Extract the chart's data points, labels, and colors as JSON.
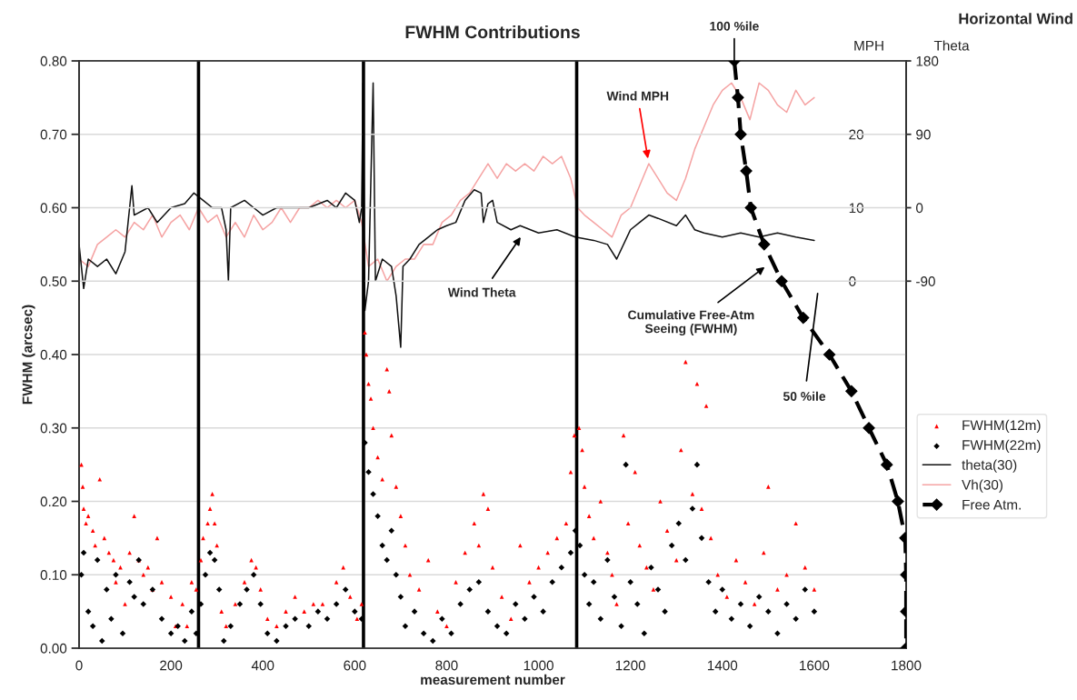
{
  "chart_data": {
    "type": "scatter",
    "title": "FWHM Contributions",
    "xlabel": "measurement number",
    "ylabel": "FWHM (arcsec)",
    "y2label": "Theta",
    "y3label": "MPH",
    "xlim": [
      0,
      1800
    ],
    "xticks": [
      0,
      200,
      400,
      600,
      800,
      1000,
      1200,
      1400,
      1600,
      1800
    ],
    "ylim": [
      0,
      0.8
    ],
    "yticks": [
      {
        "value": 0,
        "label": "0.00"
      },
      {
        "value": 0.1,
        "label": "0.10"
      },
      {
        "value": 0.2,
        "label": "0.20"
      },
      {
        "value": 0.3,
        "label": "0.30"
      },
      {
        "value": 0.4,
        "label": "0.40"
      },
      {
        "value": 0.5,
        "label": "0.50"
      },
      {
        "value": 0.6,
        "label": "0.60"
      },
      {
        "value": 0.7,
        "label": "0.70"
      },
      {
        "value": 0.8,
        "label": "0.80"
      }
    ],
    "y2lim": [
      -540,
      180
    ],
    "y2ticks": [
      -90,
      0,
      90,
      180
    ],
    "y3lim": [
      -50,
      30
    ],
    "y3ticks": [
      0,
      10,
      20
    ],
    "grid": "y",
    "legend": "right",
    "series": [
      {
        "name": "FWHM(12m)",
        "color": "#ff0000",
        "marker": "triangle",
        "x": [
          5,
          8,
          10,
          15,
          20,
          30,
          35,
          45,
          55,
          65,
          75,
          80,
          90,
          100,
          110,
          120,
          130,
          140,
          150,
          160,
          170,
          180,
          200,
          210,
          225,
          235,
          245,
          255,
          265,
          270,
          280,
          285,
          290,
          295,
          300,
          310,
          320,
          340,
          360,
          375,
          385,
          395,
          410,
          430,
          450,
          470,
          490,
          510,
          530,
          560,
          575,
          590,
          605,
          615,
          622,
          625,
          630,
          635,
          640,
          650,
          660,
          670,
          675,
          680,
          690,
          700,
          710,
          720,
          740,
          760,
          780,
          800,
          820,
          840,
          860,
          870,
          880,
          890,
          900,
          920,
          940,
          960,
          980,
          1000,
          1020,
          1040,
          1060,
          1070,
          1078,
          1088,
          1095,
          1100,
          1110,
          1120,
          1135,
          1150,
          1160,
          1170,
          1185,
          1195,
          1210,
          1220,
          1235,
          1250,
          1265,
          1280,
          1300,
          1310,
          1320,
          1335,
          1345,
          1355,
          1365,
          1375,
          1390,
          1410,
          1430,
          1450,
          1470,
          1490,
          1500,
          1520,
          1540,
          1560,
          1580,
          1600
        ],
        "values": [
          0.25,
          0.22,
          0.19,
          0.17,
          0.18,
          0.16,
          0.14,
          0.23,
          0.15,
          0.13,
          0.12,
          0.09,
          0.11,
          0.06,
          0.13,
          0.18,
          0.12,
          0.1,
          0.11,
          0.08,
          0.15,
          0.09,
          0.07,
          0.03,
          0.06,
          0.03,
          0.09,
          0.08,
          0.12,
          0.15,
          0.17,
          0.19,
          0.21,
          0.17,
          0.14,
          0.05,
          0.03,
          0.06,
          0.09,
          0.12,
          0.11,
          0.08,
          0.04,
          0.03,
          0.05,
          0.07,
          0.05,
          0.06,
          0.06,
          0.09,
          0.11,
          0.07,
          0.04,
          0.06,
          0.43,
          0.4,
          0.36,
          0.34,
          0.3,
          0.26,
          0.23,
          0.38,
          0.35,
          0.29,
          0.22,
          0.18,
          0.14,
          0.1,
          0.08,
          0.12,
          0.05,
          0.03,
          0.09,
          0.13,
          0.17,
          0.14,
          0.21,
          0.19,
          0.11,
          0.07,
          0.04,
          0.14,
          0.09,
          0.11,
          0.13,
          0.15,
          0.17,
          0.24,
          0.29,
          0.3,
          0.27,
          0.22,
          0.18,
          0.15,
          0.2,
          0.13,
          0.1,
          0.06,
          0.29,
          0.17,
          0.24,
          0.14,
          0.11,
          0.08,
          0.2,
          0.16,
          0.12,
          0.27,
          0.39,
          0.21,
          0.36,
          0.19,
          0.33,
          0.15,
          0.1,
          0.07,
          0.12,
          0.09,
          0.06,
          0.13,
          0.22,
          0.08,
          0.1,
          0.17,
          0.11,
          0.08
        ]
      },
      {
        "name": "FWHM(22m)",
        "color": "#000000",
        "marker": "diamond",
        "x": [
          5,
          10,
          20,
          30,
          40,
          50,
          60,
          70,
          80,
          95,
          110,
          120,
          130,
          140,
          160,
          180,
          200,
          215,
          230,
          245,
          255,
          265,
          275,
          285,
          295,
          305,
          315,
          330,
          350,
          365,
          380,
          395,
          410,
          430,
          450,
          470,
          500,
          520,
          540,
          560,
          580,
          600,
          615,
          622,
          630,
          640,
          650,
          660,
          670,
          680,
          690,
          700,
          710,
          730,
          750,
          770,
          790,
          810,
          830,
          850,
          870,
          890,
          910,
          930,
          950,
          970,
          990,
          1010,
          1030,
          1050,
          1070,
          1080,
          1090,
          1100,
          1110,
          1120,
          1135,
          1150,
          1165,
          1180,
          1190,
          1200,
          1215,
          1230,
          1245,
          1260,
          1275,
          1290,
          1305,
          1320,
          1335,
          1345,
          1355,
          1370,
          1385,
          1400,
          1420,
          1440,
          1460,
          1480,
          1500,
          1520,
          1540,
          1560,
          1580,
          1600
        ],
        "values": [
          0.1,
          0.13,
          0.05,
          0.03,
          0.12,
          0.01,
          0.08,
          0.04,
          0.1,
          0.02,
          0.09,
          0.07,
          0.12,
          0.06,
          0.08,
          0.04,
          0.02,
          0.03,
          0.01,
          0.05,
          0.02,
          0.06,
          0.1,
          0.13,
          0.12,
          0.08,
          0.01,
          0.03,
          0.06,
          0.08,
          0.1,
          0.06,
          0.02,
          0.01,
          0.03,
          0.04,
          0.03,
          0.05,
          0.04,
          0.06,
          0.08,
          0.05,
          0.04,
          0.28,
          0.24,
          0.21,
          0.18,
          0.14,
          0.12,
          0.16,
          0.1,
          0.07,
          0.03,
          0.05,
          0.02,
          0.01,
          0.04,
          0.02,
          0.06,
          0.08,
          0.09,
          0.05,
          0.03,
          0.02,
          0.06,
          0.04,
          0.07,
          0.05,
          0.09,
          0.11,
          0.13,
          0.16,
          0.14,
          0.1,
          0.06,
          0.09,
          0.04,
          0.12,
          0.07,
          0.03,
          0.25,
          0.09,
          0.06,
          0.02,
          0.11,
          0.08,
          0.05,
          0.14,
          0.17,
          0.12,
          0.19,
          0.25,
          0.15,
          0.09,
          0.05,
          0.08,
          0.04,
          0.06,
          0.03,
          0.07,
          0.05,
          0.02,
          0.06,
          0.04,
          0.08,
          0.05
        ]
      },
      {
        "name": "theta(30)",
        "type": "line",
        "axis": "y2",
        "color": "#111111",
        "x": [
          0,
          10,
          20,
          40,
          60,
          80,
          100,
          110,
          115,
          120,
          150,
          170,
          200,
          230,
          250,
          270,
          290,
          310,
          320,
          325,
          330,
          360,
          380,
          400,
          430,
          460,
          500,
          540,
          560,
          580,
          600,
          610,
          615,
          618,
          622,
          630,
          640,
          645,
          660,
          680,
          690,
          700,
          705,
          720,
          740,
          760,
          780,
          800,
          820,
          840,
          860,
          875,
          880,
          890,
          900,
          910,
          940,
          960,
          1000,
          1040,
          1080,
          1120,
          1150,
          1170,
          1200,
          1220,
          1240,
          1260,
          1300,
          1320,
          1340,
          1360,
          1400,
          1440,
          1480,
          1520,
          1560,
          1600
        ],
        "values": [
          -45,
          -99,
          -63,
          -72,
          -63,
          -81,
          -54,
          0,
          27,
          -9,
          0,
          -18,
          0,
          5,
          18,
          9,
          0,
          0,
          -27,
          -90,
          0,
          9,
          0,
          -9,
          0,
          0,
          0,
          9,
          0,
          18,
          9,
          -18,
          0,
          153,
          -126,
          -90,
          153,
          -90,
          -63,
          -72,
          -108,
          -171,
          -72,
          -63,
          -45,
          -36,
          -27,
          -22,
          -18,
          9,
          22,
          18,
          -18,
          5,
          9,
          -18,
          -27,
          -22,
          -31,
          -27,
          -36,
          -40,
          -45,
          -63,
          -27,
          -18,
          -9,
          -13,
          -22,
          -9,
          -27,
          -31,
          -36,
          -31,
          -36,
          -31,
          -36,
          -40
        ]
      },
      {
        "name": "Vh(30)",
        "type": "line",
        "axis": "y3",
        "color": "#f5a3a3",
        "x": [
          0,
          20,
          40,
          60,
          80,
          100,
          120,
          140,
          160,
          180,
          200,
          220,
          240,
          260,
          280,
          300,
          320,
          340,
          360,
          380,
          400,
          420,
          440,
          460,
          480,
          500,
          520,
          540,
          560,
          580,
          600,
          615,
          630,
          650,
          670,
          690,
          710,
          730,
          750,
          770,
          790,
          810,
          830,
          850,
          870,
          890,
          910,
          930,
          950,
          970,
          990,
          1010,
          1030,
          1050,
          1070,
          1085,
          1100,
          1120,
          1140,
          1160,
          1180,
          1200,
          1220,
          1240,
          1260,
          1280,
          1300,
          1320,
          1340,
          1360,
          1380,
          1400,
          1420,
          1440,
          1460,
          1480,
          1500,
          1520,
          1540,
          1560,
          1580,
          1600
        ],
        "values": [
          3,
          2,
          5,
          6,
          7,
          6,
          8,
          7,
          9,
          6,
          8,
          9,
          7,
          10,
          8,
          9,
          6,
          8,
          6,
          9,
          7,
          8,
          10,
          8,
          10,
          10,
          11,
          10,
          11,
          10,
          11,
          8,
          2,
          3,
          0,
          2,
          3,
          3,
          5,
          5,
          8,
          9,
          11,
          12,
          14,
          16,
          14,
          16,
          15,
          16,
          15,
          17,
          16,
          17,
          14,
          10,
          9,
          8,
          7,
          6,
          9,
          10,
          13,
          16,
          14,
          12,
          11,
          14,
          18,
          21,
          24,
          26,
          27,
          25,
          22,
          27,
          26,
          24,
          23,
          26,
          24,
          25
        ]
      },
      {
        "name": "Free Atm.",
        "type": "line",
        "color": "#000000",
        "marker": "diamond",
        "line_style": "dashed",
        "x": [
          1426,
          1434,
          1440,
          1452,
          1462,
          1491,
          1529,
          1576,
          1633,
          1681,
          1719,
          1758,
          1782,
          1798,
          1800,
          1800,
          1800
        ],
        "values": [
          0.8,
          0.75,
          0.7,
          0.65,
          0.6,
          0.55,
          0.5,
          0.45,
          0.4,
          0.35,
          0.3,
          0.25,
          0.2,
          0.15,
          0.1,
          0.05,
          0.0
        ]
      }
    ],
    "ref_lines": [
      {
        "axis": "x",
        "value": 260,
        "color": "#000000"
      },
      {
        "axis": "x",
        "value": 619,
        "color": "#000000"
      },
      {
        "axis": "x",
        "value": 1083,
        "color": "#000000"
      }
    ],
    "annotations": [
      {
        "text": "Wind MPH",
        "x": 1238,
        "y": 0.667
      },
      "Wind Theta",
      "Cumulative Free-Atm\nSeeing (FWHM)",
      {
        "text": "100 %ile",
        "x": 1426,
        "y": 0.8
      },
      "50 %ile",
      "Horizontal Wind"
    ]
  }
}
